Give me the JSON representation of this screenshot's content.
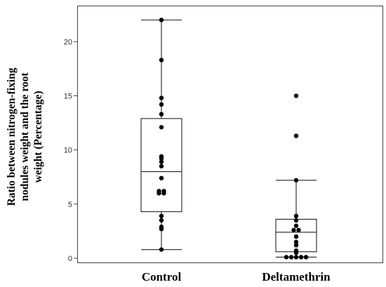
{
  "chart_data": {
    "type": "boxplot",
    "ylabel_lines": [
      "Ratio between nitrogen-fixing",
      "nodules weight and the root",
      "weight (Percentage)"
    ],
    "ylim": [
      -0.3,
      23
    ],
    "yticks": [
      0,
      5,
      10,
      15,
      20
    ],
    "grid": false,
    "categories": [
      "Control",
      "Deltamethrin"
    ],
    "series": [
      {
        "category": "Control",
        "whisker_low": 0.8,
        "q1": 4.3,
        "median": 8.0,
        "q3": 12.9,
        "whisker_high": 22.0,
        "points": [
          22.0,
          18.3,
          14.8,
          14.2,
          13.3,
          12.1,
          9.4,
          9.2,
          8.9,
          8.5,
          7.4,
          6.2,
          6.2,
          6.0,
          6.0,
          3.9,
          3.5,
          2.9,
          2.7,
          0.8
        ]
      },
      {
        "category": "Deltamethrin",
        "whisker_low": 0.1,
        "q1": 0.6,
        "median": 2.4,
        "q3": 3.6,
        "whisker_high": 7.2,
        "points": [
          15.0,
          11.3,
          7.2,
          3.9,
          3.5,
          3.0,
          2.6,
          2.5,
          2.0,
          1.5,
          1.2,
          0.7,
          0.5,
          0.1,
          0.1,
          0.1,
          0.1,
          0.1
        ]
      }
    ]
  }
}
